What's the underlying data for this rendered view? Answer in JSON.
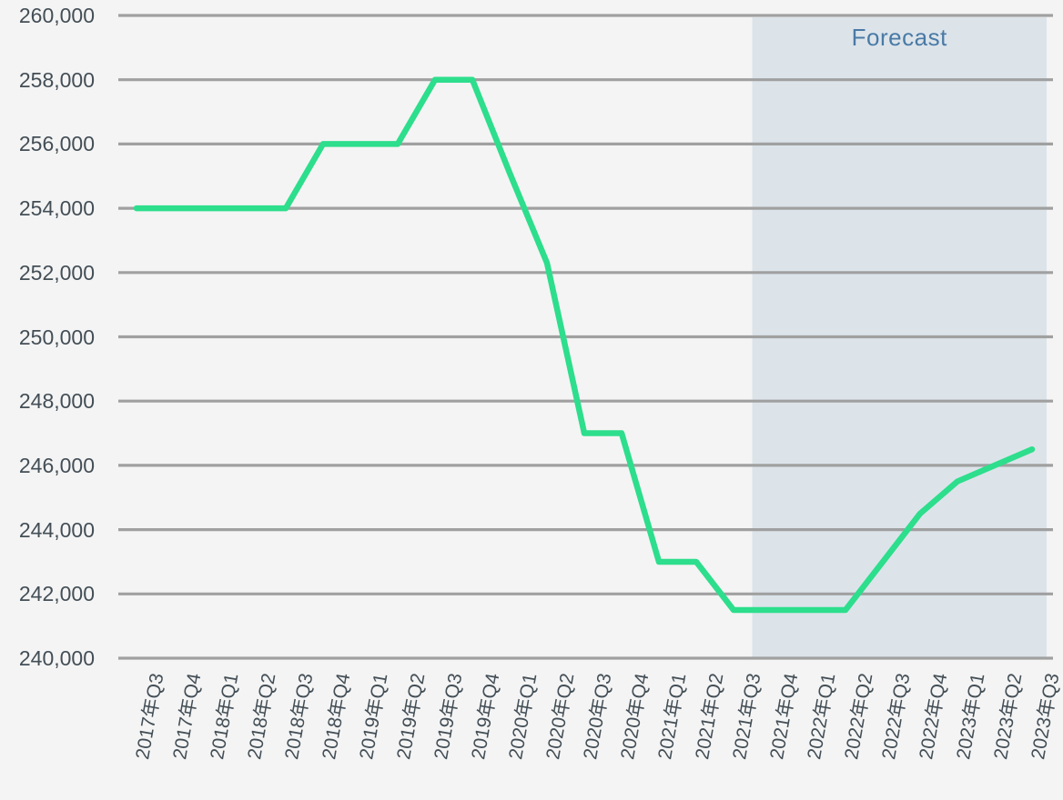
{
  "chart_data": {
    "type": "line",
    "forecast_label": "Forecast",
    "xlabel": "",
    "ylabel": "",
    "categories": [
      "2017年Q3",
      "2017年Q4",
      "2018年Q1",
      "2018年Q2",
      "2018年Q3",
      "2018年Q4",
      "2019年Q1",
      "2019年Q2",
      "2019年Q3",
      "2019年Q4",
      "2020年Q1",
      "2020年Q2",
      "2020年Q3",
      "2020年Q4",
      "2021年Q1",
      "2021年Q2",
      "2021年Q3",
      "2021年Q4",
      "2022年Q1",
      "2022年Q2",
      "2022年Q3",
      "2022年Q4",
      "2023年Q1",
      "2023年Q2",
      "2023年Q3"
    ],
    "values": [
      254000,
      254000,
      254000,
      254000,
      254000,
      256000,
      256000,
      256000,
      258000,
      258000,
      255100,
      252300,
      247000,
      247000,
      243000,
      243000,
      241500,
      241500,
      241500,
      241500,
      243000,
      244500,
      245500,
      246000,
      246500
    ],
    "ylim": [
      240000,
      260000
    ],
    "y_ticks": [
      240000,
      242000,
      244000,
      246000,
      248000,
      250000,
      252000,
      254000,
      256000,
      258000,
      260000
    ],
    "y_tick_labels": [
      "240,000",
      "242,000",
      "244,000",
      "246,000",
      "248,000",
      "250,000",
      "252,000",
      "254,000",
      "256,000",
      "258,000",
      "260,000"
    ],
    "forecast_start_category": "2021年Q4",
    "grid": true,
    "legend": "none",
    "colors": {
      "line": "#2dde8c",
      "gridline": "#a0a0a0",
      "forecast_region": "#dce4ea",
      "forecast_text": "#4a7aa6",
      "axis_text": "#434e56",
      "background": "#f4f4f4"
    }
  }
}
